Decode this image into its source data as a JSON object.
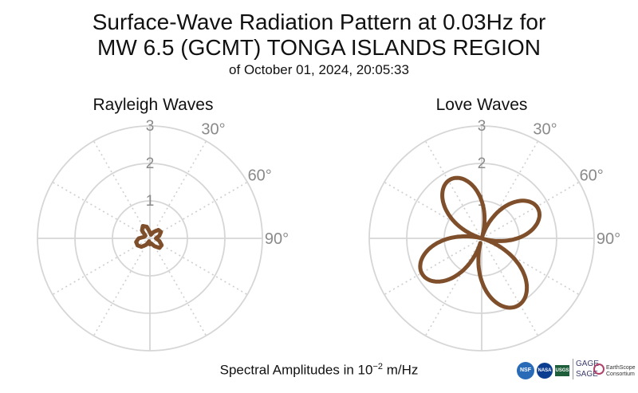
{
  "chart_data": [
    {
      "type": "polar-line",
      "title": "Rayleigh Waves",
      "radial_ticks": [
        "1",
        "2",
        "3"
      ],
      "radial_range": [
        0,
        3
      ],
      "angle_labels": [
        "30°",
        "60°",
        "90°"
      ],
      "angular_direction": "clockwise",
      "zero_angle": "north",
      "grid": true,
      "series": [
        {
          "color": "#7f4f2c",
          "theta_deg": [
            0,
            15,
            30,
            45,
            60,
            75,
            90,
            105,
            120,
            135,
            150,
            165,
            180,
            195,
            210,
            225,
            240,
            255,
            270,
            285,
            300,
            315,
            330,
            345,
            360
          ],
          "r": [
            0.16,
            0.1,
            0.2,
            0.32,
            0.34,
            0.26,
            0.16,
            0.26,
            0.36,
            0.36,
            0.24,
            0.14,
            0.16,
            0.08,
            0.2,
            0.32,
            0.38,
            0.38,
            0.3,
            0.16,
            0.14,
            0.3,
            0.38,
            0.32,
            0.16
          ]
        }
      ]
    },
    {
      "type": "polar-line",
      "title": "Love Waves",
      "radial_ticks": [
        "1",
        "2",
        "3"
      ],
      "radial_range": [
        0,
        3
      ],
      "angle_labels": [
        "30°",
        "60°",
        "90°"
      ],
      "angular_direction": "clockwise",
      "zero_angle": "north",
      "grid": true,
      "series": [
        {
          "color": "#7f4f2c",
          "petals": [
            {
              "peak_theta_deg": 62,
              "peak_r": 1.7
            },
            {
              "peak_theta_deg": 152,
              "peak_r": 2.04
            },
            {
              "peak_theta_deg": 239,
              "peak_r": 1.85
            },
            {
              "peak_theta_deg": 332,
              "peak_r": 1.78
            }
          ]
        }
      ]
    }
  ],
  "title_line1": "Surface-Wave Radiation Pattern at 0.03Hz for",
  "title_line2": "MW 6.5 (GCMT) TONGA ISLANDS REGION",
  "subtitle": "of October 01, 2024, 20:05:33",
  "footer_prefix": "Spectral Amplitudes in 10",
  "footer_exp": "−2",
  "footer_suffix": " m/Hz",
  "logos": {
    "nsf": "NSF",
    "nasa": "NASA",
    "usgs": "USGS",
    "gage": "GAGE",
    "sage": "SAGE",
    "earthscope": "EarthScope",
    "consortium": "Consortium"
  }
}
